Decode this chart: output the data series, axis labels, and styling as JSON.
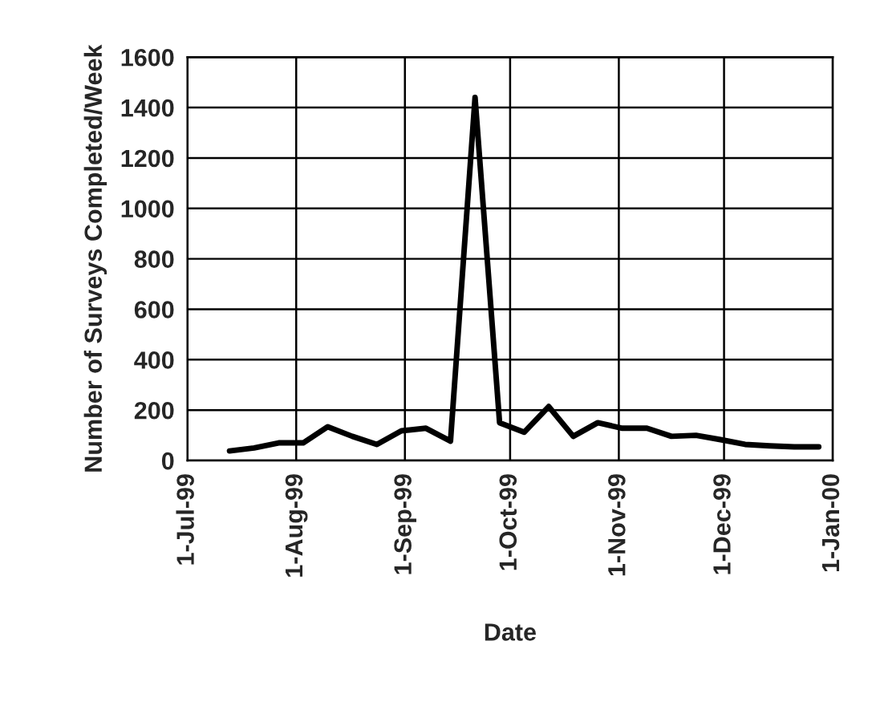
{
  "chart_data": {
    "type": "line",
    "xlabel": "Date",
    "ylabel": "Number of Surveys Completed/Week",
    "x": [
      "1999-07-13",
      "1999-07-20",
      "1999-07-27",
      "1999-08-03",
      "1999-08-10",
      "1999-08-17",
      "1999-08-24",
      "1999-08-31",
      "1999-09-07",
      "1999-09-14",
      "1999-09-21",
      "1999-09-28",
      "1999-10-05",
      "1999-10-12",
      "1999-10-19",
      "1999-10-26",
      "1999-11-02",
      "1999-11-09",
      "1999-11-16",
      "1999-11-23",
      "1999-11-30",
      "1999-12-07",
      "1999-12-14",
      "1999-12-21",
      "1999-12-28"
    ],
    "series": [
      {
        "color": "#000000",
        "values": [
          38,
          50,
          70,
          70,
          134,
          96,
          64,
          118,
          128,
          77,
          1440,
          150,
          112,
          214,
          96,
          150,
          128,
          128,
          96,
          100,
          83,
          64,
          58,
          54,
          54
        ]
      }
    ],
    "xlim": [
      "1999-07-01",
      "2000-01-01"
    ],
    "xticks": [
      {
        "value": "1999-07-01",
        "label": "1-Jul-99"
      },
      {
        "value": "1999-08-01",
        "label": "1-Aug-99"
      },
      {
        "value": "1999-09-01",
        "label": "1-Sep-99"
      },
      {
        "value": "1999-10-01",
        "label": "1-Oct-99"
      },
      {
        "value": "1999-11-01",
        "label": "1-Nov-99"
      },
      {
        "value": "1999-12-01",
        "label": "1-Dec-99"
      },
      {
        "value": "2000-01-01",
        "label": "1-Jan-00"
      }
    ],
    "ylim": [
      0,
      1600
    ],
    "yticks": [
      0,
      200,
      400,
      600,
      800,
      1000,
      1200,
      1400,
      1600
    ],
    "grid": true,
    "legend": false,
    "marker": "none",
    "line_style": "solid"
  }
}
